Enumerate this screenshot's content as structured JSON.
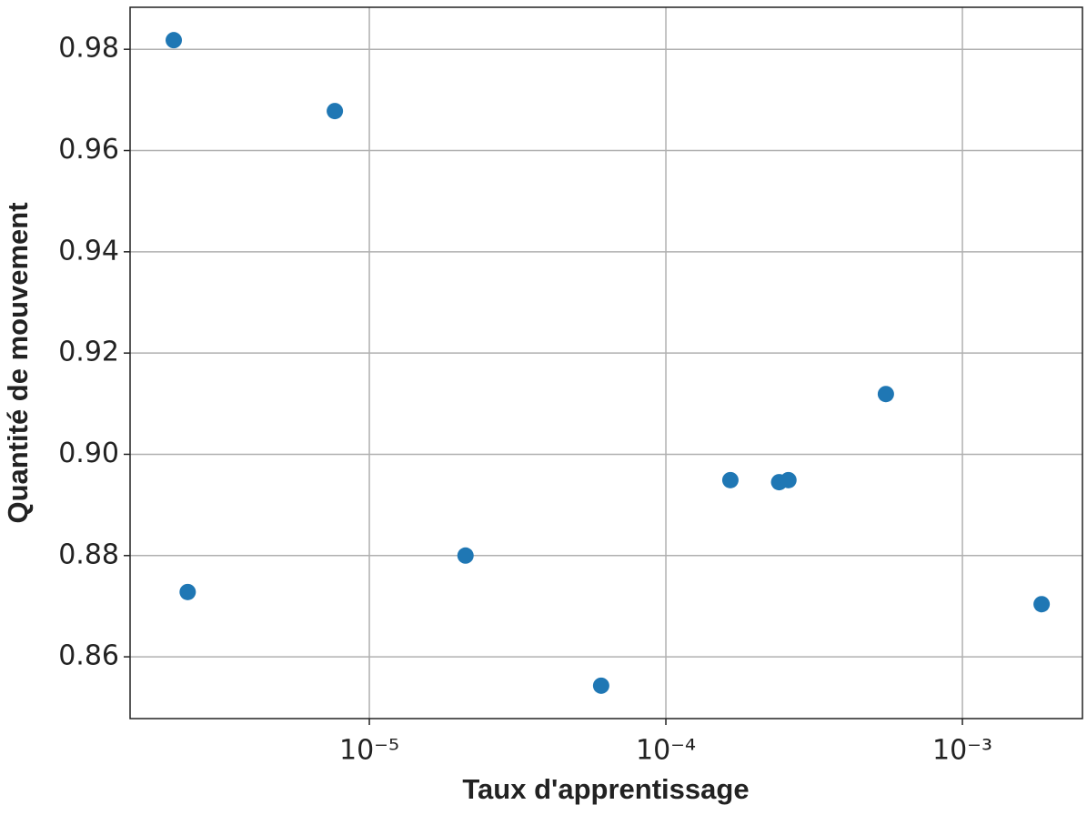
{
  "chart_data": {
    "type": "scatter",
    "x_label": "Taux d'apprentissage",
    "y_label": "Quantité de mouvement",
    "x_log": true,
    "grid": true,
    "color": "#1f77b4",
    "x": [
      2.19e-06,
      2.44e-06,
      7.65e-06,
      2.11e-05,
      6.05e-05,
      0.000165,
      0.000241,
      0.000259,
      0.000552,
      0.00185
    ],
    "values": [
      0.9818,
      0.8728,
      0.9678,
      0.88,
      0.8543,
      0.8949,
      0.8945,
      0.8949,
      0.9119,
      0.8704
    ],
    "xlim": [
      1.56e-06,
      0.00254
    ],
    "ylim": [
      0.8478,
      0.9883
    ],
    "xticks": [
      {
        "value": 1e-05,
        "label": "10⁻⁵"
      },
      {
        "value": 0.0001,
        "label": "10⁻⁴"
      },
      {
        "value": 0.001,
        "label": "10⁻³"
      }
    ],
    "yticks": [
      0.86,
      0.88,
      {
        "value": 0.9,
        "label": "0.90"
      },
      0.92,
      0.94,
      0.96,
      0.98
    ]
  }
}
